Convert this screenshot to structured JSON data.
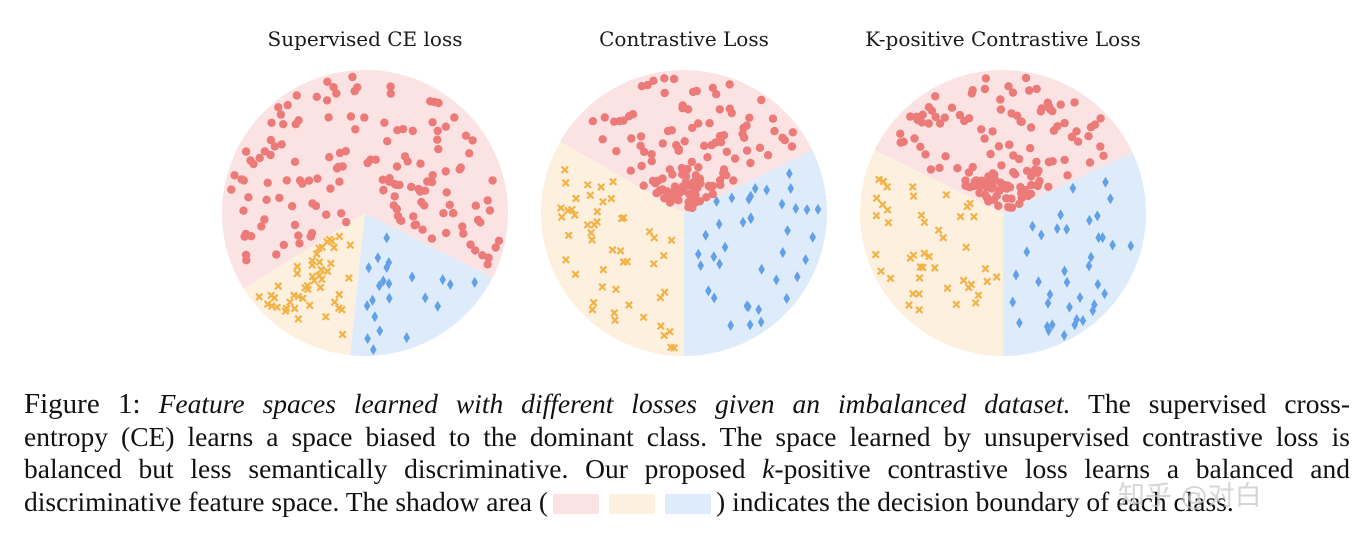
{
  "figure": {
    "colors": {
      "class_a_region": "#fbe3e3",
      "class_b_region": "#fdf0de",
      "class_c_region": "#ddebfa",
      "class_a_marker": "#eb7a78",
      "class_b_marker": "#f3b246",
      "class_c_marker": "#62a0e8"
    },
    "panels": [
      {
        "title": "Supervised CE loss",
        "regions": [
          {
            "class": "a",
            "start_deg": 148,
            "end_deg": 387
          },
          {
            "class": "b",
            "start_deg": 96,
            "end_deg": 148
          },
          {
            "class": "c",
            "start_deg": 27,
            "end_deg": 96
          }
        ],
        "class_counts": {
          "a": 150,
          "b": 48,
          "c": 22
        }
      },
      {
        "title": "Contrastive Loss",
        "regions": [
          {
            "class": "a",
            "start_deg": 210,
            "end_deg": 334
          },
          {
            "class": "b",
            "start_deg": 90,
            "end_deg": 210
          },
          {
            "class": "c",
            "start_deg": -26,
            "end_deg": 90
          }
        ],
        "class_counts": {
          "a": 140,
          "b": 50,
          "c": 38
        }
      },
      {
        "title": "K-positive Contrastive Loss",
        "regions": [
          {
            "class": "a",
            "start_deg": 206,
            "end_deg": 335
          },
          {
            "class": "b",
            "start_deg": 90,
            "end_deg": 206
          },
          {
            "class": "c",
            "start_deg": -25,
            "end_deg": 90
          }
        ],
        "class_counts": {
          "a": 140,
          "b": 45,
          "c": 38
        }
      }
    ]
  },
  "caption": {
    "figure_label": "Figure 1:",
    "italic_sentence": "Feature spaces learned with different losses given an imbalanced dataset.",
    "line1_rest": "The supervised cross-",
    "line2": "entropy (CE) learns a space biased to the dominant class. The space learned by unsupervised contrastive loss is",
    "line3_a": "balanced but less semantically discriminative. Our proposed",
    "line3_k": "k",
    "line3_b": "-positive contrastive loss learns a balanced and",
    "line4_a": "discriminative feature space. The shadow area (",
    "line4_b": ") indicates the decision boundary of each class."
  },
  "watermark": "知乎 @对白"
}
